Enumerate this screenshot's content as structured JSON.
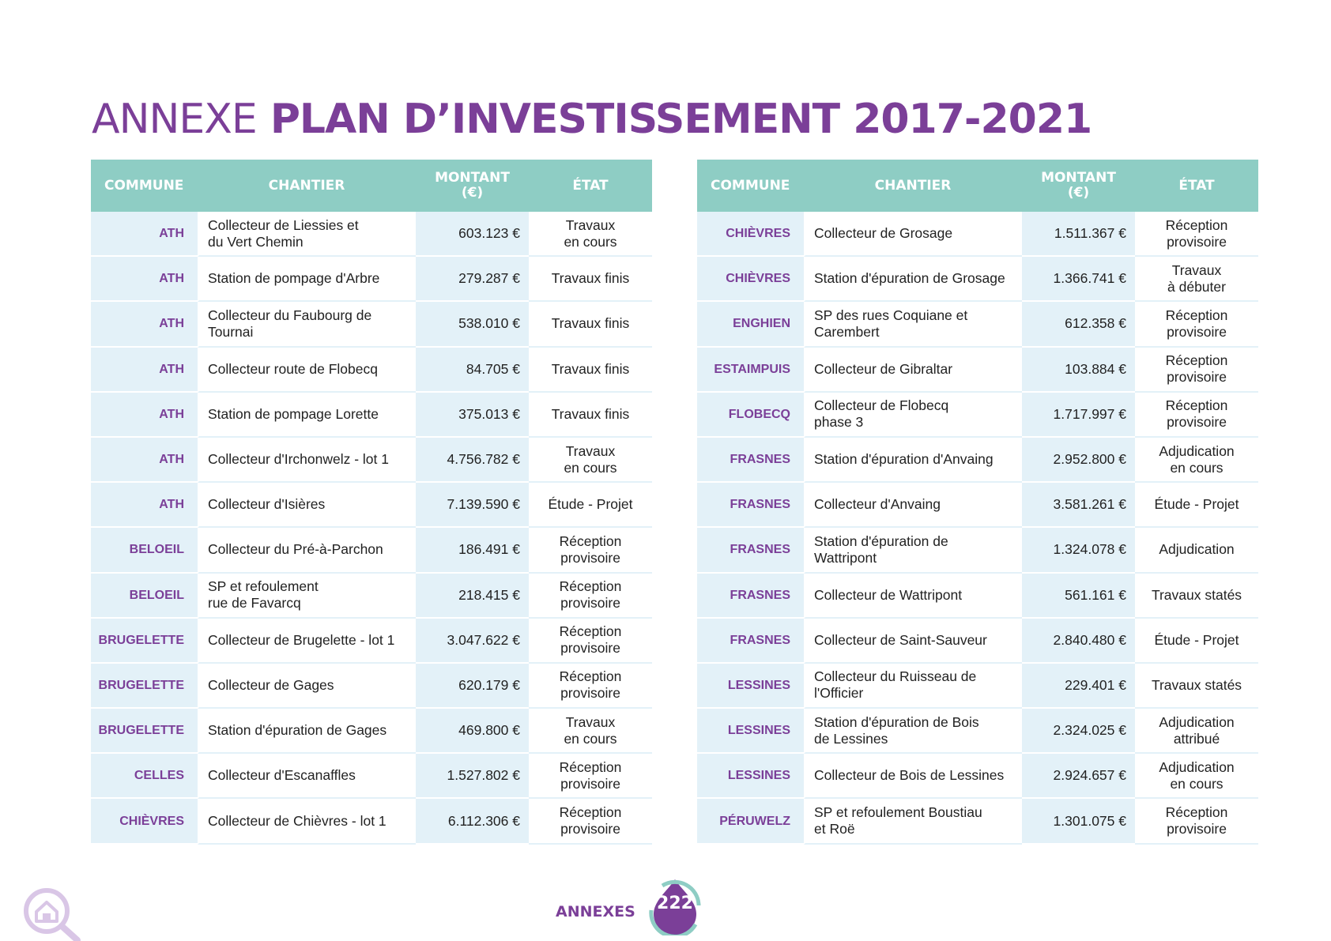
{
  "title": {
    "light": "ANNEXE",
    "bold": "PLAN D’INVESTISSEMENT 2017-2021"
  },
  "headers": {
    "commune": "COMMUNE",
    "chantier": "CHANTIER",
    "montant_line1": "MONTANT",
    "montant_line2": "(€)",
    "etat": "ÉTAT"
  },
  "left_rows": [
    {
      "commune": "ATH",
      "chantier": "Collecteur de Liessies et\ndu Vert Chemin",
      "montant": "603.123 €",
      "etat": "Travaux\nen cours"
    },
    {
      "commune": "ATH",
      "chantier": "Station de pompage d'Arbre",
      "montant": "279.287 €",
      "etat": "Travaux finis"
    },
    {
      "commune": "ATH",
      "chantier": "Collecteur du Faubourg de\nTournai",
      "montant": "538.010 €",
      "etat": "Travaux finis"
    },
    {
      "commune": "ATH",
      "chantier": "Collecteur route de Flobecq",
      "montant": "84.705 €",
      "etat": "Travaux finis"
    },
    {
      "commune": "ATH",
      "chantier": "Station de pompage Lorette",
      "montant": "375.013 €",
      "etat": "Travaux finis"
    },
    {
      "commune": "ATH",
      "chantier": "Collecteur d'Irchonwelz - lot 1",
      "montant": "4.756.782 €",
      "etat": "Travaux\nen cours"
    },
    {
      "commune": "ATH",
      "chantier": "Collecteur d'Isières",
      "montant": "7.139.590 €",
      "etat": "Étude - Projet"
    },
    {
      "commune": "BELOEIL",
      "chantier": "Collecteur du Pré-à-Parchon",
      "montant": "186.491 €",
      "etat": "Réception\nprovisoire"
    },
    {
      "commune": "BELOEIL",
      "chantier": "SP et refoulement\nrue de Favarcq",
      "montant": "218.415 €",
      "etat": "Réception\nprovisoire"
    },
    {
      "commune": "BRUGELETTE",
      "chantier": "Collecteur de Brugelette - lot 1",
      "montant": "3.047.622 €",
      "etat": "Réception\nprovisoire"
    },
    {
      "commune": "BRUGELETTE",
      "chantier": "Collecteur de Gages",
      "montant": "620.179 €",
      "etat": "Réception\nprovisoire"
    },
    {
      "commune": "BRUGELETTE",
      "chantier": "Station d'épuration de Gages",
      "montant": "469.800 €",
      "etat": "Travaux\nen cours"
    },
    {
      "commune": "CELLES",
      "chantier": "Collecteur d'Escanaffles",
      "montant": "1.527.802 €",
      "etat": "Réception\nprovisoire"
    },
    {
      "commune": "CHIÈVRES",
      "chantier": "Collecteur de Chièvres - lot 1",
      "montant": "6.112.306 €",
      "etat": "Réception\nprovisoire"
    }
  ],
  "right_rows": [
    {
      "commune": "CHIÈVRES",
      "chantier": "Collecteur de Grosage",
      "montant": "1.511.367 €",
      "etat": "Réception\nprovisoire"
    },
    {
      "commune": "CHIÈVRES",
      "chantier": "Station d'épuration de Grosage",
      "montant": "1.366.741 €",
      "etat": "Travaux\nà débuter"
    },
    {
      "commune": "ENGHIEN",
      "chantier": "SP des rues Coquiane et\nCarembert",
      "montant": "612.358 €",
      "etat": "Réception\nprovisoire"
    },
    {
      "commune": "ESTAIMPUIS",
      "chantier": "Collecteur de Gibraltar",
      "montant": "103.884 €",
      "etat": "Réception\nprovisoire"
    },
    {
      "commune": "FLOBECQ",
      "chantier": "Collecteur de Flobecq\nphase 3",
      "montant": "1.717.997 €",
      "etat": "Réception\nprovisoire"
    },
    {
      "commune": "FRASNES",
      "chantier": "Station d'épuration d'Anvaing",
      "montant": "2.952.800 €",
      "etat": "Adjudication\nen cours"
    },
    {
      "commune": "FRASNES",
      "chantier": "Collecteur d'Anvaing",
      "montant": "3.581.261 €",
      "etat": "Étude - Projet"
    },
    {
      "commune": "FRASNES",
      "chantier": "Station d'épuration de\nWattripont",
      "montant": "1.324.078 €",
      "etat": "Adjudication"
    },
    {
      "commune": "FRASNES",
      "chantier": "Collecteur de Wattripont",
      "montant": "561.161 €",
      "etat": "Travaux statés"
    },
    {
      "commune": "FRASNES",
      "chantier": "Collecteur de Saint-Sauveur",
      "montant": "2.840.480 €",
      "etat": "Étude - Projet"
    },
    {
      "commune": "LESSINES",
      "chantier": "Collecteur du Ruisseau de\nl'Officier",
      "montant": "229.401 €",
      "etat": "Travaux statés"
    },
    {
      "commune": "LESSINES",
      "chantier": "Station d'épuration de Bois\nde Lessines",
      "montant": "2.324.025 €",
      "etat": "Adjudication\nattribué"
    },
    {
      "commune": "LESSINES",
      "chantier": "Collecteur de Bois de Lessines",
      "montant": "2.924.657 €",
      "etat": "Adjudication\nen cours"
    },
    {
      "commune": "PÉRUWELZ",
      "chantier": "SP et refoulement Boustiau\net Roë",
      "montant": "1.301.075 €",
      "etat": "Réception\nprovisoire"
    }
  ],
  "footer": {
    "section": "ANNEXES",
    "page": "222"
  },
  "colors": {
    "purple": "#7b3f98",
    "teal": "#8ecdc4",
    "light_blue": "#e3f1f8"
  }
}
